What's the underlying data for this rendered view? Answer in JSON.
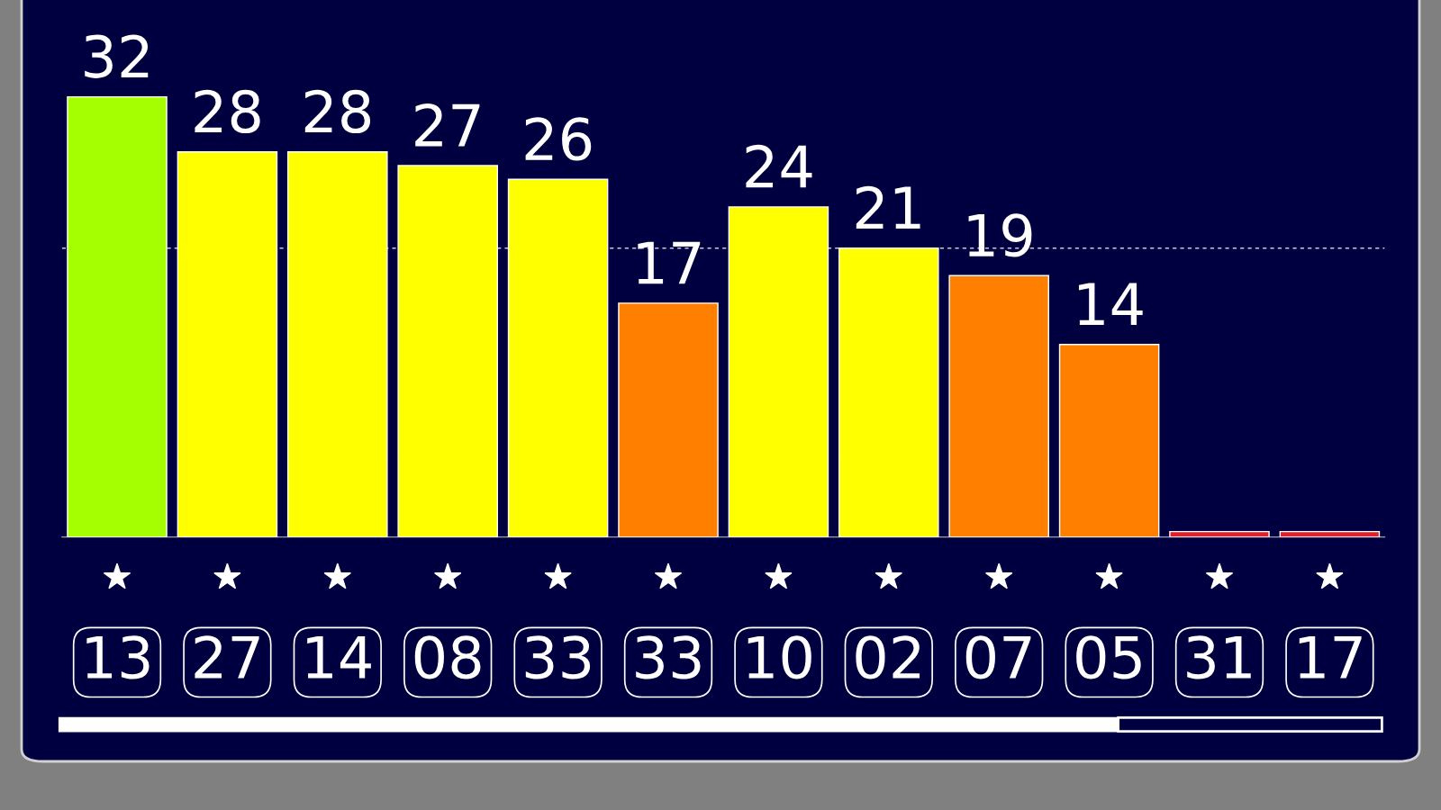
{
  "chart_data": {
    "type": "bar",
    "categories": [
      "13",
      "27",
      "14",
      "08",
      "33",
      "33",
      "10",
      "02",
      "07",
      "05",
      "31",
      "17"
    ],
    "values": [
      32,
      28,
      28,
      27,
      26,
      17,
      24,
      21,
      19,
      14,
      0.4,
      0.4
    ],
    "colors": [
      "#a6ff00",
      "#ffff00",
      "#ffff00",
      "#ffff00",
      "#ffff00",
      "#ff8000",
      "#ffff00",
      "#ffff00",
      "#ff8000",
      "#ff8000",
      "#e0202a",
      "#e0202a"
    ],
    "value_labels": [
      "32",
      "28",
      "28",
      "27",
      "26",
      "17",
      "24",
      "21",
      "19",
      "14",
      null,
      null
    ],
    "ref_lines": [
      {
        "axis": "y",
        "value": 21,
        "color": "#c8c8d8",
        "line_style": "dashed"
      }
    ],
    "grid": false,
    "legend": false
  }
}
